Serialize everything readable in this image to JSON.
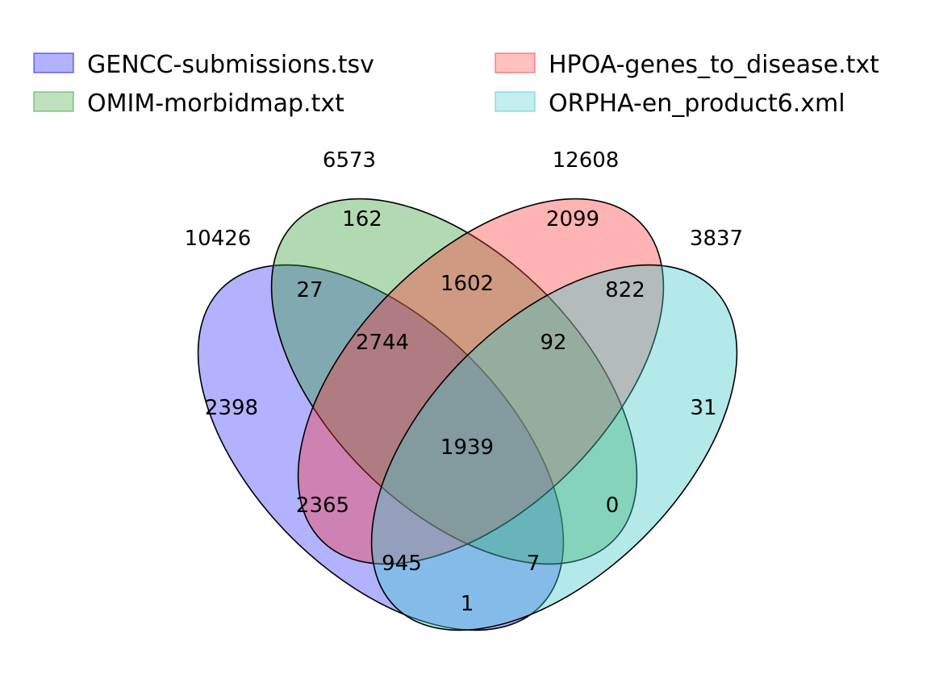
{
  "sets": [
    {
      "id": "gencc",
      "name": "GENCC-submissions.tsv",
      "total": "10426",
      "color": "#0000ff",
      "stroke": "#0000ff"
    },
    {
      "id": "omim",
      "name": "OMIM-morbidmap.txt",
      "total": "6573",
      "color": "#2e9a2e",
      "stroke": "#2e9a2e"
    },
    {
      "id": "hpoa",
      "name": "HPOA-genes_to_disease.txt",
      "total": "12608",
      "color": "#ff3030",
      "stroke": "#ff3030"
    },
    {
      "id": "orpha",
      "name": "ORPHA-en_product6.xml",
      "total": "3837",
      "color": "#40c8c8",
      "stroke": "#40c8c8"
    }
  ],
  "regions": {
    "g_only": "2398",
    "o_only": "162",
    "h_only": "2099",
    "r_only": "31",
    "g_o": "27",
    "o_h": "1602",
    "h_r": "822",
    "g_o_h": "2744",
    "o_h_r": "92",
    "all": "1939",
    "g_h": "2365",
    "o_r": "0",
    "g_h_r": "945",
    "g_o_r": "7",
    "g_r": "1"
  }
}
